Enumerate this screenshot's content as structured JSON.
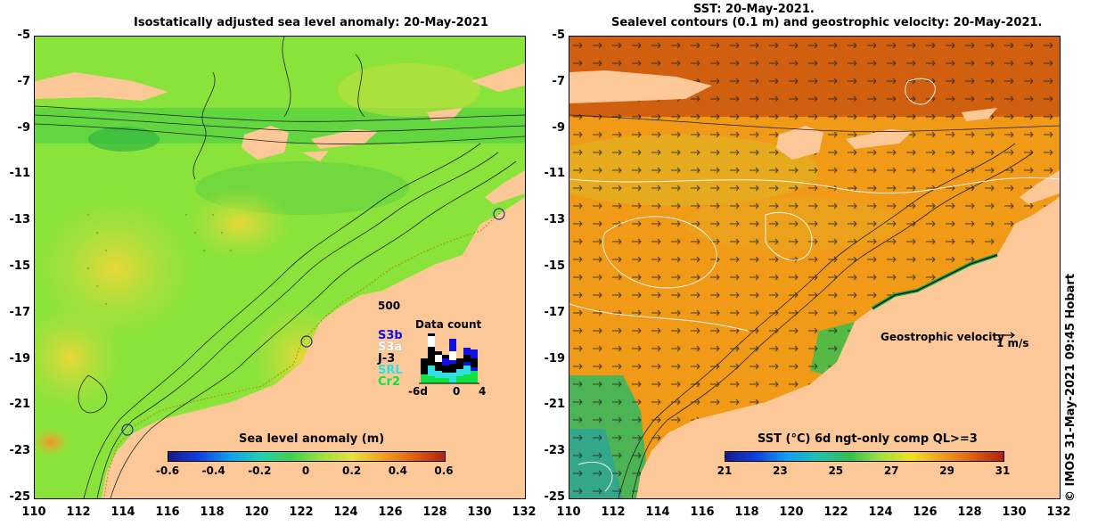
{
  "left_title": "Isostatically adjusted sea level anomaly: 20-May-2021",
  "right_title": {
    "line1": "SST: 20-May-2021.",
    "line2": "Sealevel contours (0.1 m) and geostrophic velocity: 20-May-2021."
  },
  "y_ticks": [
    "-5",
    "-7",
    "-9",
    "-11",
    "-13",
    "-15",
    "-17",
    "-19",
    "-21",
    "-23",
    "-25"
  ],
  "x_ticks": [
    "110",
    "112",
    "114",
    "116",
    "118",
    "120",
    "122",
    "124",
    "126",
    "128",
    "130",
    "132"
  ],
  "left_colorbar": {
    "title": "Sea level anomaly (m)",
    "labels": [
      "-0.6",
      "-0.4",
      "-0.2",
      "0",
      "0.2",
      "0.4",
      "0.6"
    ]
  },
  "right_colorbar": {
    "title": "SST (°C) 6d ngt-only comp QL>=3",
    "labels": [
      "21",
      "23",
      "25",
      "27",
      "29",
      "31"
    ]
  },
  "data_count": {
    "title": "Data count",
    "max_label": "500",
    "axis_labels": [
      "-6d",
      "0",
      "4"
    ],
    "missions": [
      {
        "name": "S3b",
        "color": "#1010e0"
      },
      {
        "name": "S3a",
        "color": "#ffffff"
      },
      {
        "name": "J-3",
        "color": "#000000"
      },
      {
        "name": "SRL",
        "color": "#30e0e0"
      },
      {
        "name": "Cr2",
        "color": "#10e040"
      }
    ]
  },
  "velocity_legend": {
    "label": "Geostrophic velocity",
    "scale": "1 m/s"
  },
  "credit": "© IMOS 31-May-2021 09:45 Hobart",
  "colors": {
    "land": "#fcc898",
    "sla_ocean": "#7ee03a",
    "sst_ocean": "#f09a18",
    "sst_north": "#d06010"
  }
}
